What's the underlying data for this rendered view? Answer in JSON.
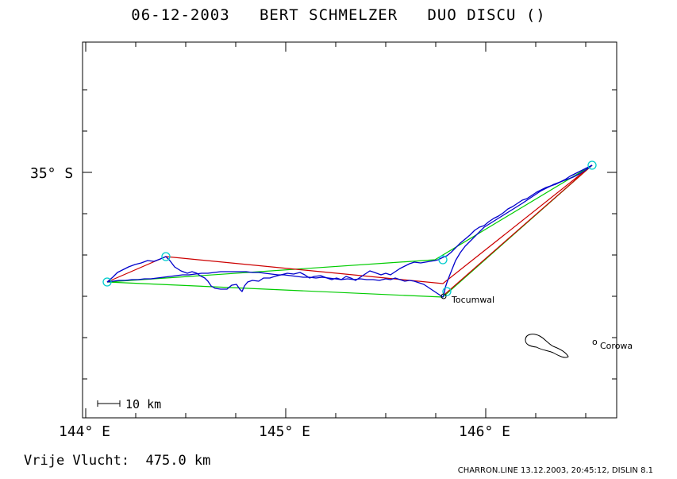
{
  "title": "06-12-2003   BERT SCHMELZER   DUO DISCU ()",
  "axes": {
    "lat_label": "35° S",
    "lon_labels": [
      "144° E",
      "145° E",
      "146° E"
    ]
  },
  "towns": {
    "tocumwal": "Tocumwal",
    "corowa": "Corowa",
    "corowa_marker": "o"
  },
  "scale_bar": {
    "label": "10 km"
  },
  "footer": {
    "distance": "Vrije Vlucht:  475.0 km",
    "credit": "CHARRON.LINE 13.12.2003, 20:45:12, DISLIN 8.1"
  },
  "colors": {
    "track": "#0000cc",
    "task_green": "#00cc00",
    "task_red": "#cc0000",
    "turnpoint": "#00cccc",
    "river": "#000000"
  }
}
